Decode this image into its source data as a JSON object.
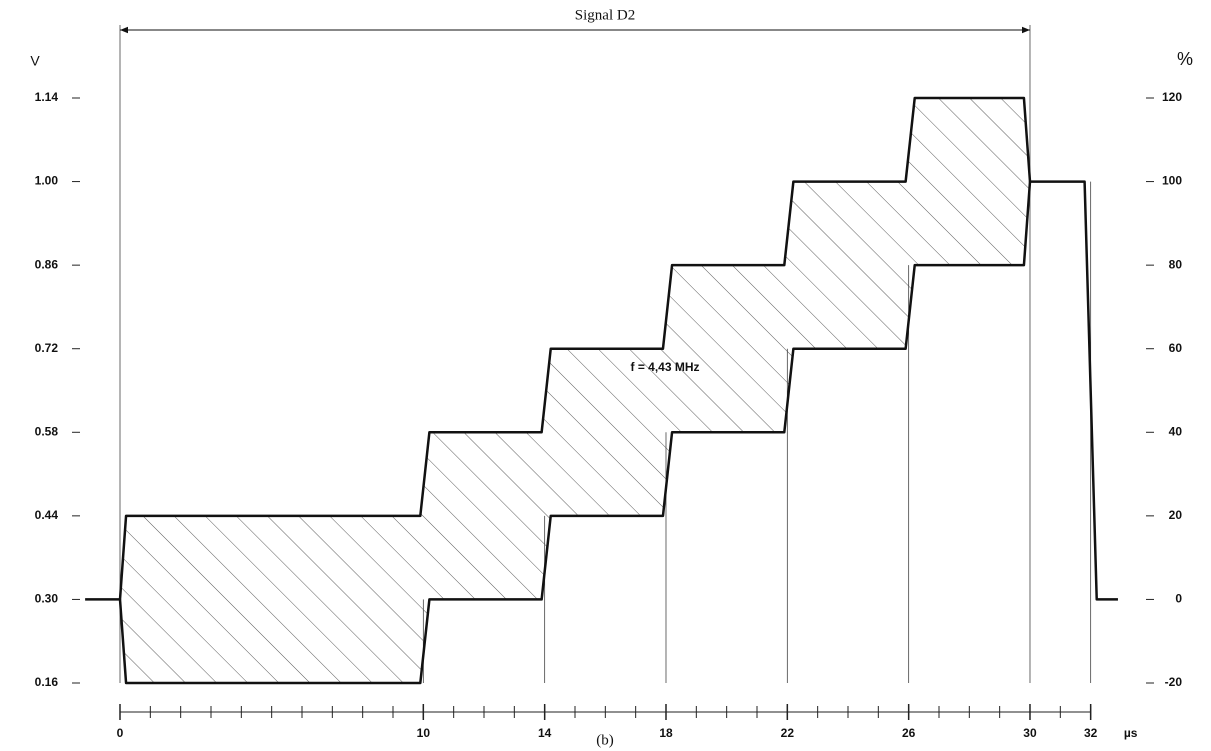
{
  "chart_data": {
    "type": "line",
    "title": "Signal D2",
    "annotations": [
      "f = 4,43 MHz",
      "(b)"
    ],
    "ylabel": "V",
    "y2label": "%",
    "xlabel": "µs",
    "xlim": [
      -1.2,
      33
    ],
    "xticks": [
      0,
      10,
      14,
      18,
      22,
      26,
      30,
      32
    ],
    "xminorticks": [
      0,
      1,
      2,
      3,
      4,
      5,
      6,
      7,
      8,
      9,
      10,
      11,
      12,
      13,
      14,
      15,
      16,
      17,
      18,
      19,
      20,
      21,
      22,
      23,
      24,
      25,
      26,
      27,
      28,
      29,
      30,
      31,
      32
    ],
    "ylim": [
      0.16,
      1.14
    ],
    "yticks": [
      {
        "value": 0.16,
        "label": "0.16"
      },
      {
        "value": 0.3,
        "label": "0.30"
      },
      0.44,
      0.58,
      0.72,
      0.86,
      {
        "value": 1,
        "label": "1.00"
      },
      1.14
    ],
    "y2lim": [
      -20,
      120
    ],
    "y2ticks": [
      -20,
      0,
      20,
      40,
      60,
      80,
      100,
      120
    ],
    "hatch": true,
    "series": [
      {
        "color": "#111111",
        "x": [
          -1.15,
          0,
          0.2,
          9.9,
          10.2,
          13.9,
          14.2,
          17.9,
          18.2,
          21.9,
          22.2,
          25.9,
          26.2,
          29.8,
          30,
          31.8,
          32.2,
          32.9
        ],
        "values": [
          0.3,
          0.3,
          0.44,
          0.44,
          0.58,
          0.58,
          0.72,
          0.72,
          0.86,
          0.86,
          1,
          1,
          1.14,
          1.14,
          1,
          1,
          0.3,
          0.3
        ]
      },
      {
        "color": "#111111",
        "x": [
          0,
          0.2,
          9.9,
          10.2,
          13.9,
          14.2,
          17.9,
          18.2,
          21.9,
          22.2,
          25.9,
          26.2,
          29.8,
          30
        ],
        "values": [
          0.3,
          0.16,
          0.16,
          0.3,
          0.3,
          0.44,
          0.44,
          0.58,
          0.58,
          0.72,
          0.72,
          0.86,
          0.86,
          1
        ]
      }
    ]
  }
}
